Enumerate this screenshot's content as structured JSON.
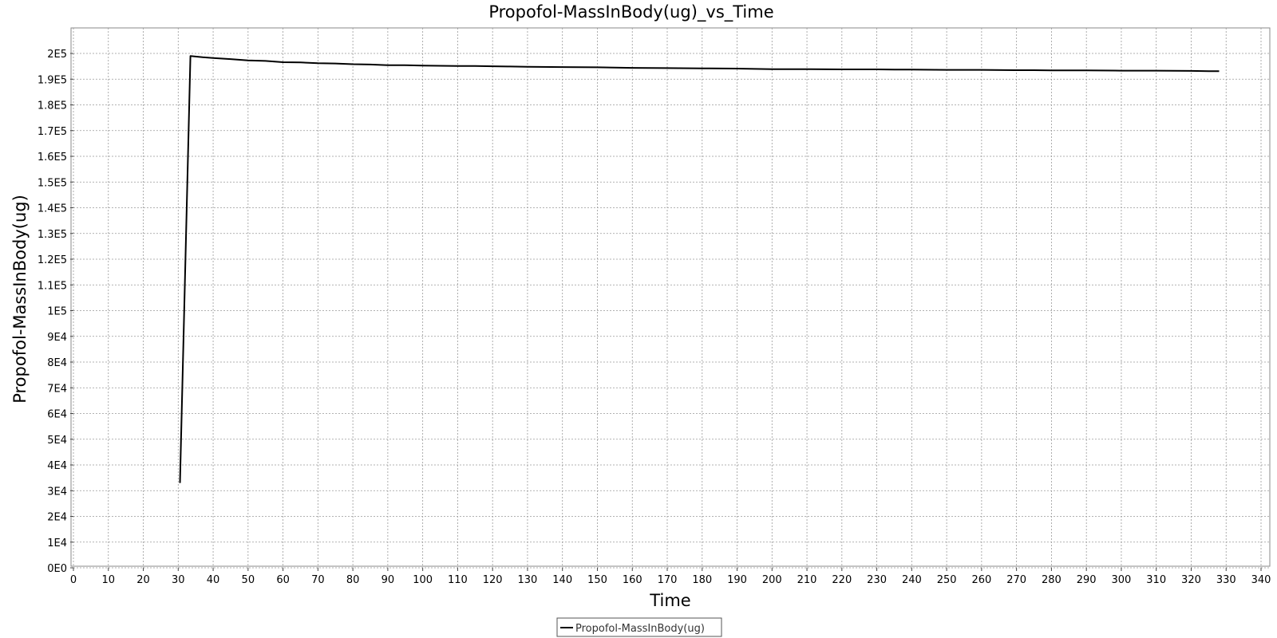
{
  "chart_data": {
    "type": "line",
    "title": "Propofol-MassInBody(ug)_vs_Time",
    "xlabel": "Time",
    "ylabel": "Propofol-MassInBody(ug)",
    "xlim": [
      0,
      340
    ],
    "ylim": [
      0,
      200000
    ],
    "x_ticks": [
      0,
      10,
      20,
      30,
      40,
      50,
      60,
      70,
      80,
      90,
      100,
      110,
      120,
      130,
      140,
      150,
      160,
      170,
      180,
      190,
      200,
      210,
      220,
      230,
      240,
      250,
      260,
      270,
      280,
      290,
      300,
      310,
      320,
      330,
      340
    ],
    "x_tick_labels": [
      "0",
      "10",
      "20",
      "30",
      "40",
      "50",
      "60",
      "70",
      "80",
      "90",
      "100",
      "110",
      "120",
      "130",
      "140",
      "150",
      "160",
      "170",
      "180",
      "190",
      "200",
      "210",
      "220",
      "230",
      "240",
      "250",
      "260",
      "270",
      "280",
      "290",
      "300",
      "310",
      "320",
      "330",
      "340"
    ],
    "y_ticks": [
      0,
      10000,
      20000,
      30000,
      40000,
      50000,
      60000,
      70000,
      80000,
      90000,
      100000,
      110000,
      120000,
      130000,
      140000,
      150000,
      160000,
      170000,
      180000,
      190000,
      200000
    ],
    "y_tick_labels": [
      "0E0",
      "1E4",
      "2E4",
      "3E4",
      "4E4",
      "5E4",
      "6E4",
      "7E4",
      "8E4",
      "9E4",
      "1E5",
      "1.1E5",
      "1.2E5",
      "1.3E5",
      "1.4E5",
      "1.5E5",
      "1.6E5",
      "1.7E5",
      "1.8E5",
      "1.9E5",
      "2E5"
    ],
    "grid": true,
    "legend_position": "bottom-center",
    "series": [
      {
        "name": "Propofol-MassInBody(ug)",
        "color": "#000000",
        "x": [
          30.5,
          33.5,
          37,
          40,
          45,
          50,
          55,
          60,
          65,
          70,
          75,
          80,
          85,
          90,
          95,
          100,
          105,
          110,
          115,
          120,
          125,
          130,
          140,
          150,
          155,
          160,
          170,
          180,
          190,
          195,
          200,
          210,
          220,
          230,
          235,
          240,
          250,
          260,
          270,
          275,
          280,
          290,
          300,
          310,
          320,
          325,
          328
        ],
        "y": [
          33000,
          199000,
          198500,
          198200,
          197800,
          197300,
          197100,
          196600,
          196500,
          196200,
          196100,
          195800,
          195700,
          195400,
          195400,
          195300,
          195200,
          195100,
          195100,
          195000,
          194900,
          194800,
          194700,
          194600,
          194500,
          194400,
          194300,
          194200,
          194100,
          194000,
          193900,
          193900,
          193800,
          193800,
          193700,
          193700,
          193600,
          193600,
          193500,
          193500,
          193400,
          193400,
          193300,
          193300,
          193200,
          193100,
          193100
        ]
      }
    ]
  }
}
